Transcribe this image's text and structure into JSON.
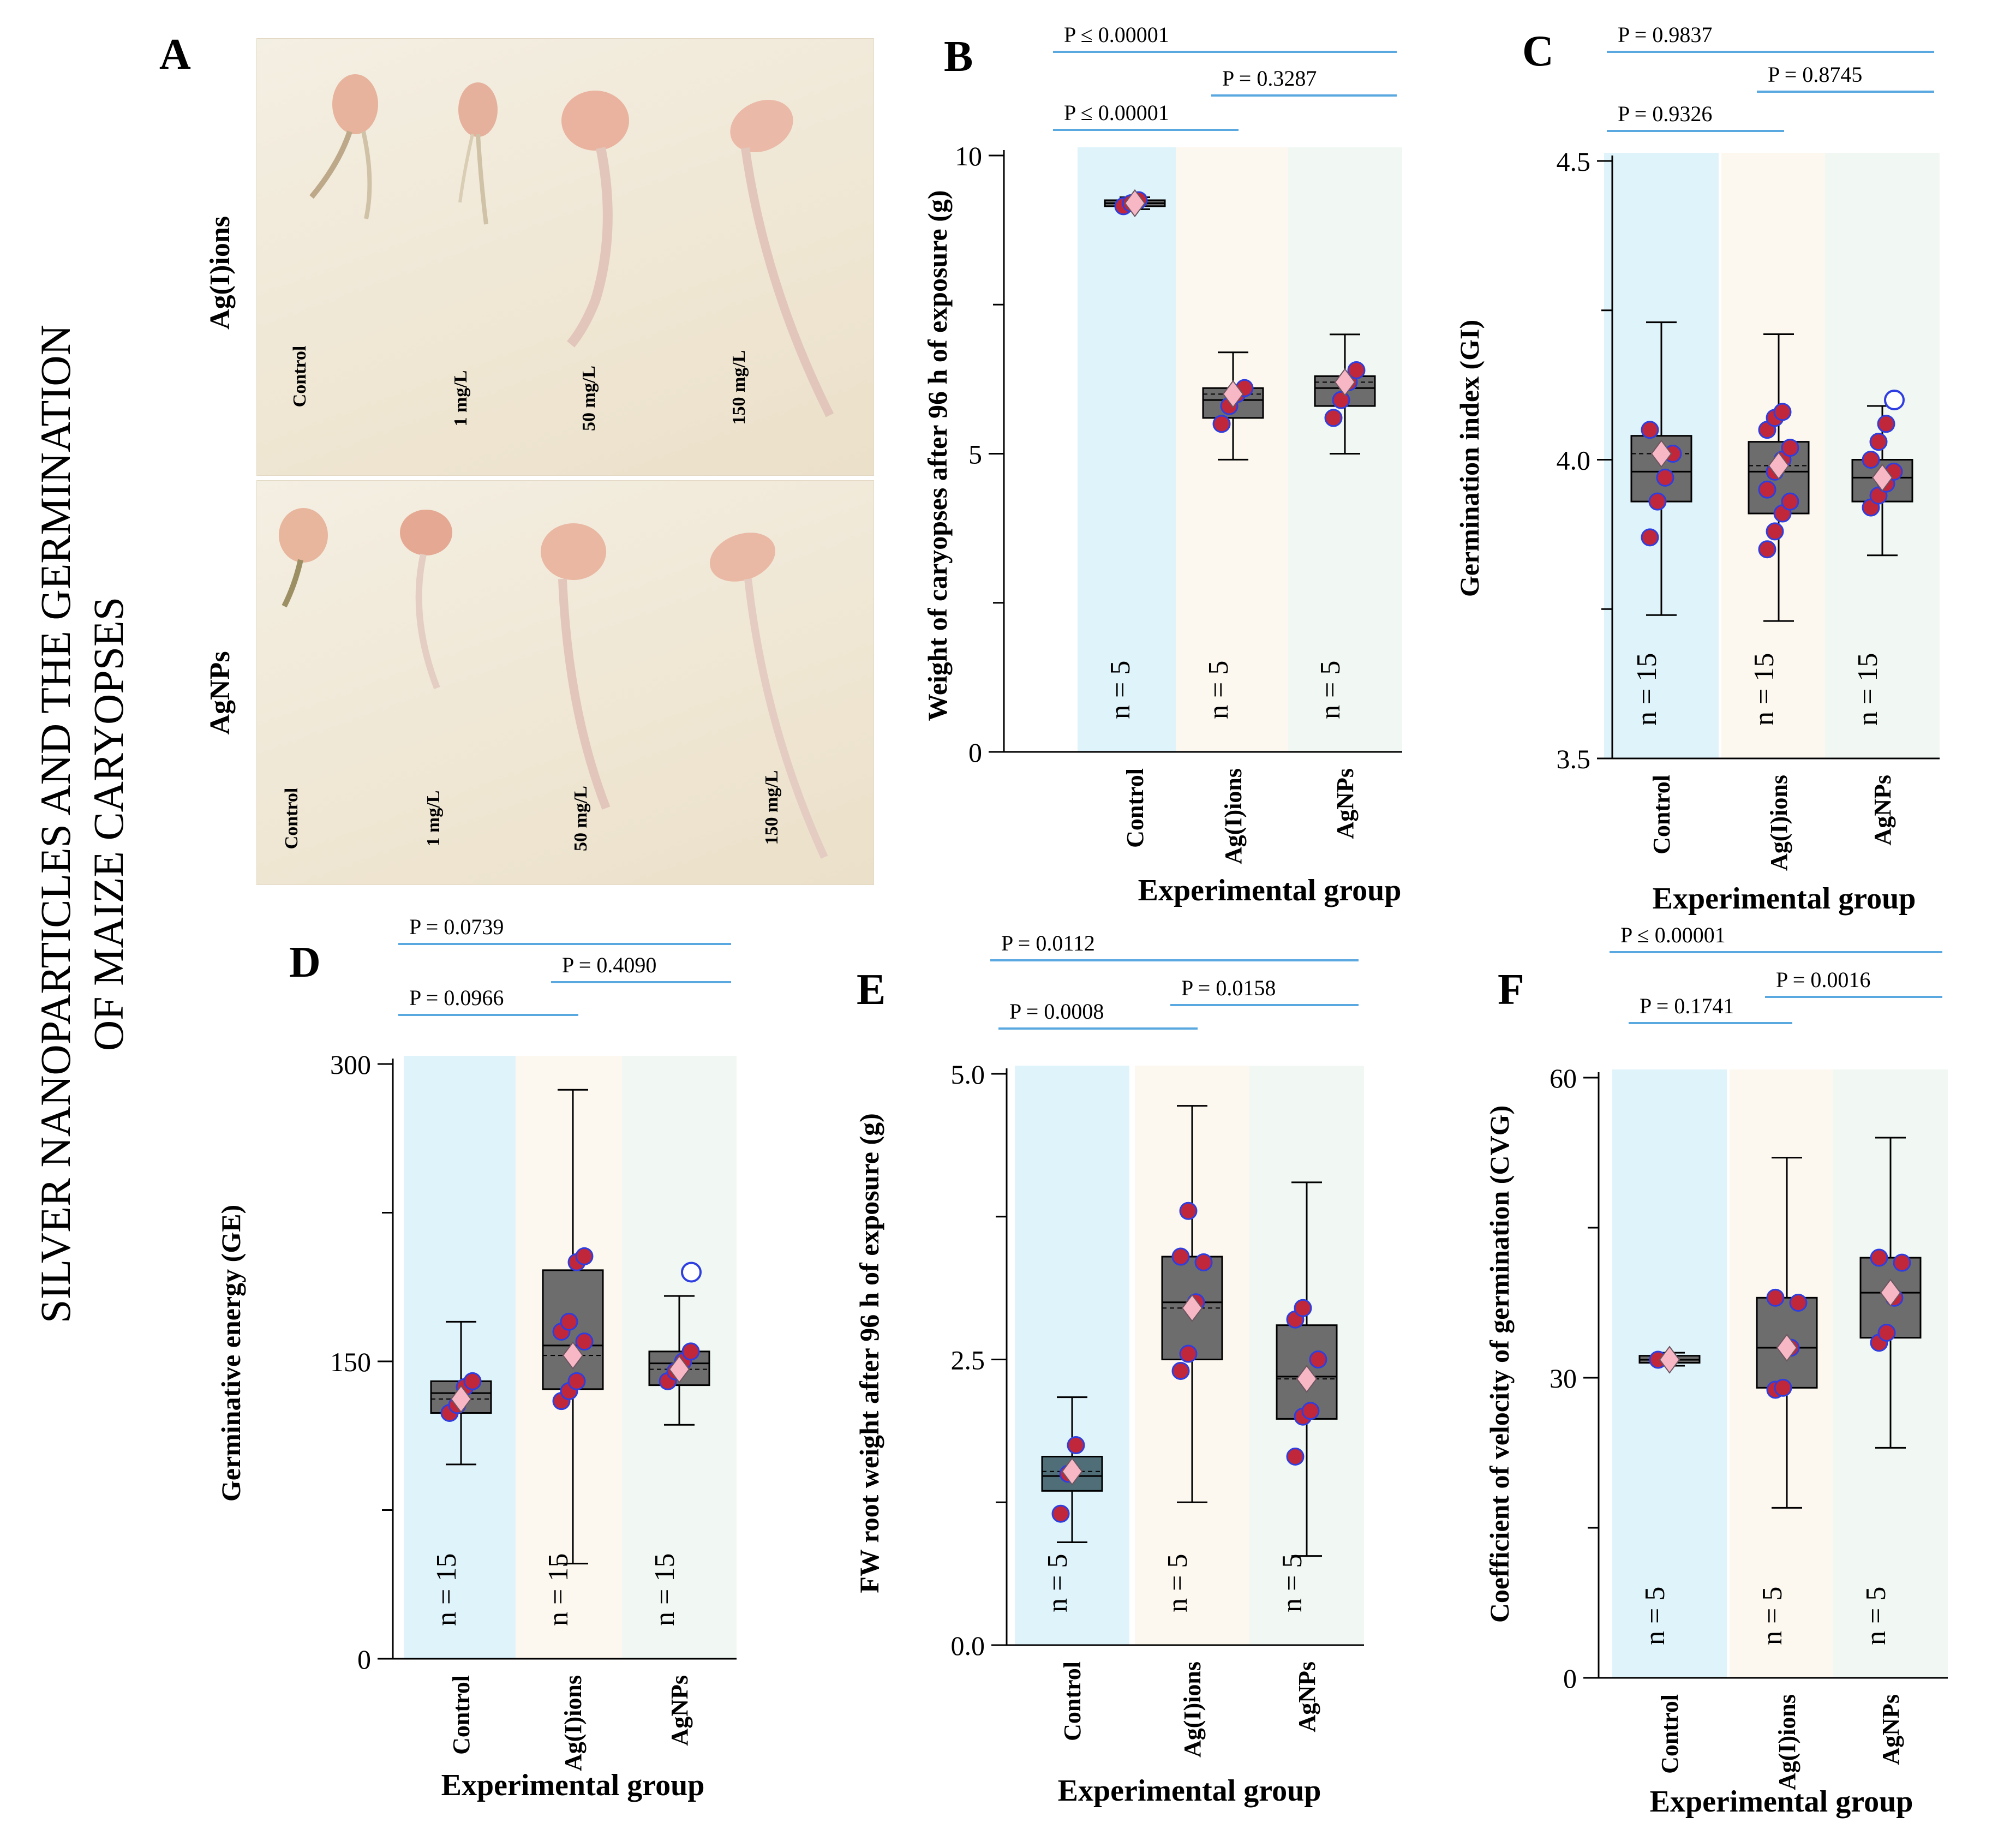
{
  "figure_title": [
    "SILVER NANOPARTICLES AND THE GERMINATION",
    "OF MAIZE CARYOPSES"
  ],
  "panel_a": {
    "label": "A",
    "rows": [
      {
        "name": "Ag(I)ions",
        "samples": [
          "Control",
          "1 mg/L",
          "50 mg/L",
          "150 mg/L"
        ]
      },
      {
        "name": "AgNPs",
        "samples": [
          "Control",
          "1 mg/L",
          "50 mg/L",
          "150 mg/L"
        ]
      }
    ]
  },
  "colors": {
    "control_band": "#dff3fb",
    "agions_band": "#fdf8ef",
    "agnps_band": "#f1f8f3",
    "sig_line": "#5aa8e0",
    "box_fill": "#6d6d6d",
    "box_fill_e_control": "#4f6e78",
    "dot_fill": "#c0273a",
    "dot_stroke": "#2e3ee0",
    "mean_marker": "#f7b7c5"
  },
  "chart_data": [
    {
      "panel": "B",
      "type": "box",
      "ylabel": "Weight of caryopses after 96 h of exposure (g)",
      "xlabel": "Experimental group",
      "categories": [
        "Control",
        "Ag(I)ions",
        "AgNPs"
      ],
      "ylim": [
        0,
        10
      ],
      "yticks": [
        0,
        5,
        10
      ],
      "minor": [
        2.5,
        7.5
      ],
      "tick_labels": [
        "0",
        "5",
        "10"
      ],
      "n_labels": [
        "n = 5",
        "n = 5",
        "n = 5"
      ],
      "boxes": [
        {
          "min": 9.1,
          "q1": 9.15,
          "median": 9.2,
          "q3": 9.25,
          "max": 9.3,
          "mean": 9.2,
          "points": [
            9.15,
            9.2,
            9.25
          ]
        },
        {
          "min": 4.9,
          "q1": 5.6,
          "median": 5.9,
          "q3": 6.1,
          "max": 6.7,
          "mean": 6.0,
          "points": [
            5.5,
            5.8,
            6.0,
            6.1
          ]
        },
        {
          "min": 5.0,
          "q1": 5.8,
          "median": 6.1,
          "q3": 6.3,
          "max": 7.0,
          "mean": 6.2,
          "points": [
            5.6,
            5.9,
            6.2,
            6.4
          ]
        }
      ],
      "outliers": [],
      "sig": [
        {
          "text": "P ≤ 0.00001",
          "from": 0,
          "to": 2,
          "level": 2
        },
        {
          "text": "P ≤ 0.00001",
          "from": 0,
          "to": 1,
          "level": 0
        },
        {
          "text": "P = 0.3287",
          "from": 1,
          "to": 2,
          "level": 1
        }
      ]
    },
    {
      "panel": "C",
      "type": "box",
      "ylabel": "Germination index (GI)",
      "xlabel": "Experimental group",
      "categories": [
        "Control",
        "Ag(I)ions",
        "AgNPs"
      ],
      "ylim": [
        3.5,
        4.5
      ],
      "yticks": [
        3.5,
        4.0,
        4.5
      ],
      "minor": [
        3.75,
        4.25
      ],
      "tick_labels": [
        "3.5",
        "4.0",
        "4.5"
      ],
      "n_labels": [
        "n = 15",
        "n = 15",
        "n = 15"
      ],
      "boxes": [
        {
          "min": 3.74,
          "q1": 3.93,
          "median": 3.98,
          "q3": 4.04,
          "max": 4.23,
          "mean": 4.01,
          "points": [
            3.87,
            3.93,
            3.97,
            4.01,
            4.05
          ]
        },
        {
          "min": 3.73,
          "q1": 3.91,
          "median": 3.98,
          "q3": 4.03,
          "max": 4.21,
          "mean": 3.99,
          "points": [
            3.85,
            3.88,
            3.91,
            3.93,
            3.95,
            3.98,
            4.0,
            4.02,
            4.05,
            4.07,
            4.08
          ]
        },
        {
          "min": 3.84,
          "q1": 3.93,
          "median": 3.97,
          "q3": 4.0,
          "max": 4.09,
          "mean": 3.97,
          "points": [
            3.92,
            3.94,
            3.96,
            3.98,
            4.0,
            4.03,
            4.06
          ]
        }
      ],
      "outliers": [
        {
          "group": 2,
          "value": 4.1
        }
      ],
      "sig": [
        {
          "text": "P = 0.9837",
          "from": 0,
          "to": 2,
          "level": 2
        },
        {
          "text": "P = 0.9326",
          "from": 0,
          "to": 1,
          "level": 0
        },
        {
          "text": "P = 0.8745",
          "from": 1,
          "to": 2,
          "level": 1
        }
      ]
    },
    {
      "panel": "D",
      "type": "box",
      "ylabel": "Germinative energy (GE)",
      "xlabel": "Experimental group",
      "categories": [
        "Control",
        "Ag(I)ions",
        "AgNPs"
      ],
      "ylim": [
        0,
        300
      ],
      "yticks": [
        0,
        150,
        300
      ],
      "minor": [
        75,
        225
      ],
      "tick_labels": [
        "0",
        "150",
        "300"
      ],
      "n_labels": [
        "n = 15",
        "n = 15",
        "n = 15"
      ],
      "boxes": [
        {
          "min": 98,
          "q1": 124,
          "median": 134,
          "q3": 140,
          "max": 170,
          "mean": 131,
          "points": [
            124,
            128,
            137,
            140
          ]
        },
        {
          "min": 48,
          "q1": 136,
          "median": 158,
          "q3": 196,
          "max": 287,
          "mean": 153,
          "points": [
            130,
            135,
            140,
            160,
            165,
            170,
            200,
            203
          ]
        },
        {
          "min": 118,
          "q1": 138,
          "median": 149,
          "q3": 155,
          "max": 183,
          "mean": 146,
          "points": [
            140,
            145,
            150,
            155
          ]
        }
      ],
      "outliers": [
        {
          "group": 2,
          "value": 195
        }
      ],
      "sig": [
        {
          "text": "P = 0.0739",
          "from": 0,
          "to": 2,
          "level": 2
        },
        {
          "text": "P = 0.0966",
          "from": 0,
          "to": 1,
          "level": 0
        },
        {
          "text": "P = 0.4090",
          "from": 1,
          "to": 2,
          "level": 1
        }
      ]
    },
    {
      "panel": "E",
      "type": "box",
      "ylabel": "FW root weight after 96 h of exposure (g)",
      "xlabel": "Experimental group",
      "categories": [
        "Control",
        "Ag(I)ions",
        "AgNPs"
      ],
      "ylim": [
        0,
        5
      ],
      "yticks": [
        0,
        2.5,
        5
      ],
      "minor": [
        1.25,
        3.75
      ],
      "tick_labels": [
        "0.0",
        "2.5",
        "5.0"
      ],
      "n_labels": [
        "n = 5",
        "n = 5",
        "n = 5"
      ],
      "boxes": [
        {
          "min": 0.9,
          "q1": 1.35,
          "median": 1.48,
          "q3": 1.65,
          "max": 2.17,
          "mean": 1.52,
          "points": [
            1.15,
            1.5,
            1.75
          ]
        },
        {
          "min": 1.25,
          "q1": 2.5,
          "median": 3.0,
          "q3": 3.4,
          "max": 4.72,
          "mean": 2.95,
          "points": [
            2.4,
            2.55,
            3.0,
            3.35,
            3.4,
            3.8
          ]
        },
        {
          "min": 0.78,
          "q1": 1.98,
          "median": 2.35,
          "q3": 2.8,
          "max": 4.05,
          "mean": 2.33,
          "points": [
            1.65,
            2.0,
            2.05,
            2.5,
            2.85,
            2.95
          ]
        }
      ],
      "outliers": [],
      "sig": [
        {
          "text": "P = 0.0112",
          "from": 0,
          "to": 2,
          "level": 2
        },
        {
          "text": "P = 0.0008",
          "from": 0,
          "to": 1,
          "level": 0
        },
        {
          "text": "P = 0.0158",
          "from": 1,
          "to": 2,
          "level": 1
        }
      ]
    },
    {
      "panel": "F",
      "type": "box",
      "ylabel": "Coefficient of velocity of germination (CVG)",
      "xlabel": "Experimental group",
      "categories": [
        "Control",
        "Ag(I)ions",
        "AgNPs"
      ],
      "ylim": [
        0,
        60
      ],
      "yticks": [
        0,
        30,
        60
      ],
      "minor": [
        15,
        45
      ],
      "tick_labels": [
        "0",
        "30",
        "60"
      ],
      "n_labels": [
        "n = 5",
        "n = 5",
        "n = 5"
      ],
      "boxes": [
        {
          "min": 31.2,
          "q1": 31.5,
          "median": 31.8,
          "q3": 32.2,
          "max": 32.5,
          "mean": 31.8,
          "points": [
            31.8
          ]
        },
        {
          "min": 17,
          "q1": 29,
          "median": 33,
          "q3": 38,
          "max": 52,
          "mean": 33,
          "points": [
            28.8,
            29.0,
            33,
            37.5,
            38
          ]
        },
        {
          "min": 23,
          "q1": 34,
          "median": 38.5,
          "q3": 42,
          "max": 54,
          "mean": 38.5,
          "points": [
            33.5,
            34.5,
            38,
            41.5,
            42
          ]
        }
      ],
      "outliers": [],
      "sig": [
        {
          "text": "P ≤ 0.00001",
          "from": 0,
          "to": 2,
          "level": 2
        },
        {
          "text": "P = 0.1741",
          "from": 0,
          "to": 1,
          "level": 0
        },
        {
          "text": "P = 0.0016",
          "from": 1,
          "to": 2,
          "level": 1
        }
      ]
    }
  ]
}
